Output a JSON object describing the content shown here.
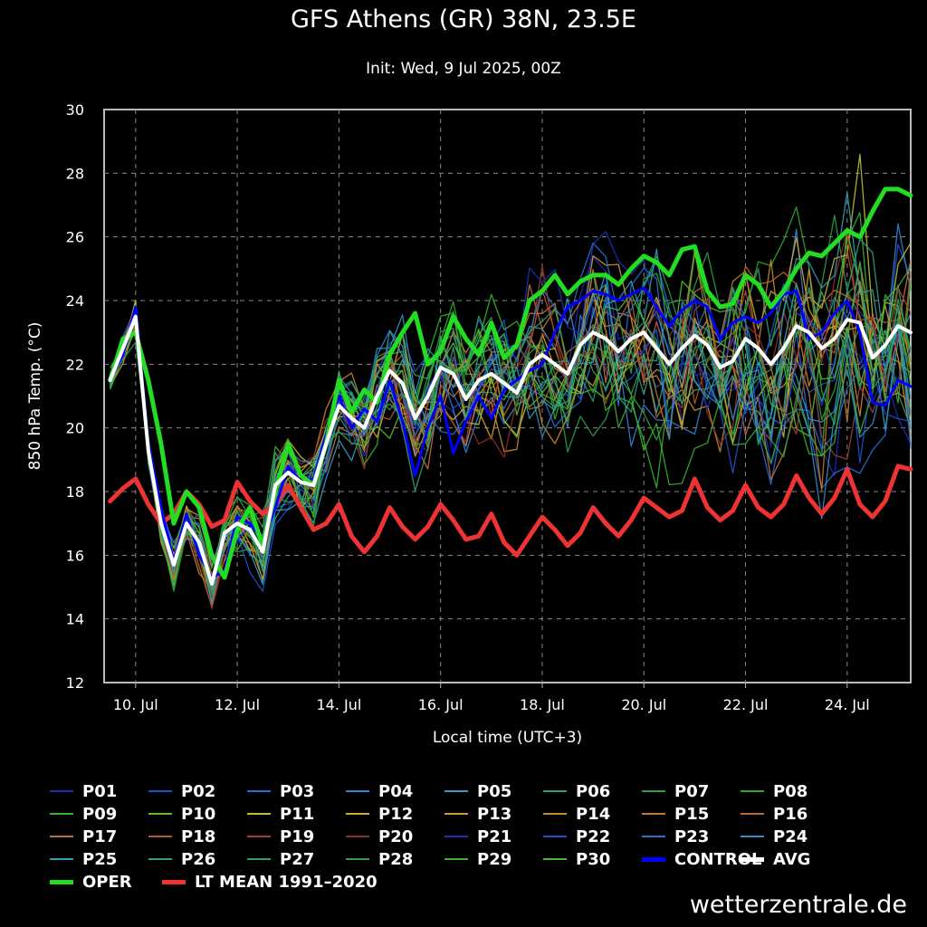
{
  "title": "GFS Athens (GR) 38N, 23.5E",
  "subtitle": "Init: Wed, 9 Jul 2025, 00Z",
  "credit": "wetterzentrale.de",
  "chart_data": {
    "type": "line",
    "title": "GFS Athens (GR) 38N, 23.5E",
    "subtitle": "Init: Wed, 9 Jul 2025, 00Z",
    "xlabel": "Local time (UTC+3)",
    "ylabel": "850 hPa Temp. (°C)",
    "x_axis": {
      "unit": "days after 9 Jul 2025 00Z (local)",
      "min": 0.38,
      "max": 16.25,
      "ticks": [
        1,
        3,
        5,
        7,
        9,
        11,
        13,
        15
      ],
      "tick_labels": [
        "10. Jul",
        "12. Jul",
        "14. Jul",
        "16. Jul",
        "18. Jul",
        "20. Jul",
        "22. Jul",
        "24. Jul"
      ]
    },
    "ylim": [
      12,
      30
    ],
    "yticks": [
      12,
      14,
      16,
      18,
      20,
      22,
      24,
      26,
      28,
      30
    ],
    "grid": true,
    "legend_placement": "bottom",
    "x_step_hours": 6,
    "x_start": 0.5,
    "series": [
      {
        "name": "OPER",
        "color": "#22dd22",
        "width": 5,
        "values": [
          21.5,
          22.8,
          23.0,
          21.5,
          19.5,
          17.0,
          18.0,
          17.5,
          16.0,
          15.3,
          16.8,
          17.5,
          16.3,
          18.0,
          19.5,
          18.5,
          18.2,
          19.5,
          21.5,
          20.5,
          21.2,
          20.8,
          22.3,
          23.0,
          23.6,
          22.0,
          22.4,
          23.5,
          22.8,
          22.3,
          23.3,
          22.2,
          22.6,
          24.0,
          24.3,
          24.8,
          24.2,
          24.6,
          24.8,
          24.8,
          24.5,
          25.0,
          25.4,
          25.2,
          24.8,
          25.6,
          25.7,
          24.3,
          23.8,
          23.9,
          24.8,
          24.5,
          23.8,
          24.3,
          25.0,
          25.5,
          25.4,
          25.8,
          26.2,
          26.0,
          26.8,
          27.5,
          27.5,
          27.3
        ]
      },
      {
        "name": "CONTROL",
        "color": "#0000ff",
        "width": 3,
        "values": [
          21.5,
          22.3,
          23.8,
          19.5,
          17.5,
          15.8,
          17.3,
          16.0,
          15.3,
          15.5,
          17.2,
          17.0,
          16.5,
          17.5,
          18.8,
          18.3,
          18.4,
          19.8,
          21.0,
          20.0,
          20.6,
          20.2,
          21.5,
          20.2,
          18.5,
          20.0,
          21.0,
          19.2,
          20.2,
          21.0,
          20.3,
          21.2,
          21.5,
          21.8,
          22.0,
          23.0,
          23.8,
          24.0,
          24.3,
          24.2,
          24.0,
          24.2,
          24.4,
          23.8,
          23.2,
          23.7,
          24.0,
          23.8,
          22.8,
          23.3,
          23.5,
          23.3,
          23.6,
          24.2,
          24.3,
          22.8,
          23.0,
          23.6,
          24.0,
          23.0,
          20.8,
          20.7,
          21.5,
          21.3
        ]
      },
      {
        "name": "AVG",
        "color": "#ffffff",
        "width": 4,
        "values": [
          21.5,
          22.5,
          23.5,
          19.3,
          17.0,
          15.7,
          17.0,
          16.4,
          15.1,
          16.7,
          17.0,
          16.8,
          16.1,
          18.2,
          18.6,
          18.3,
          18.2,
          19.5,
          20.7,
          20.3,
          20.0,
          21.0,
          21.8,
          21.4,
          20.3,
          21.0,
          21.9,
          21.7,
          20.9,
          21.5,
          21.7,
          21.4,
          21.1,
          22.0,
          22.3,
          22.0,
          21.7,
          22.6,
          23.0,
          22.8,
          22.4,
          22.8,
          23.0,
          22.5,
          22.0,
          22.5,
          22.9,
          22.6,
          21.9,
          22.1,
          22.8,
          22.5,
          22.0,
          22.5,
          23.2,
          23.0,
          22.5,
          22.8,
          23.4,
          23.3,
          22.2,
          22.6,
          23.2,
          23.0
        ]
      },
      {
        "name": "LT MEAN 1991–2020",
        "color": "#ee3333",
        "width": 5,
        "values": [
          17.7,
          18.1,
          18.4,
          17.6,
          17.0,
          17.3,
          18.0,
          17.6,
          16.9,
          17.1,
          18.3,
          17.7,
          17.3,
          17.6,
          18.2,
          17.5,
          16.8,
          17.0,
          17.6,
          16.6,
          16.1,
          16.6,
          17.5,
          16.9,
          16.5,
          16.9,
          17.6,
          17.1,
          16.5,
          16.6,
          17.3,
          16.4,
          16.0,
          16.6,
          17.2,
          16.8,
          16.3,
          16.7,
          17.5,
          17.0,
          16.6,
          17.1,
          17.8,
          17.5,
          17.2,
          17.4,
          18.4,
          17.5,
          17.1,
          17.4,
          18.2,
          17.5,
          17.2,
          17.6,
          18.5,
          17.8,
          17.3,
          17.8,
          18.7,
          17.6,
          17.2,
          17.7,
          18.8,
          18.7
        ]
      }
    ],
    "perturbation_members": [
      "P01",
      "P02",
      "P03",
      "P04",
      "P05",
      "P06",
      "P07",
      "P08",
      "P09",
      "P10",
      "P11",
      "P12",
      "P13",
      "P14",
      "P15",
      "P16",
      "P17",
      "P18",
      "P19",
      "P20",
      "P21",
      "P22",
      "P23",
      "P24",
      "P25",
      "P26",
      "P27",
      "P28",
      "P29",
      "P30"
    ]
  },
  "legend": [
    {
      "label": "P01",
      "color": "#1a2fb0"
    },
    {
      "label": "P02",
      "color": "#1f4fd0"
    },
    {
      "label": "P03",
      "color": "#2a6bd8"
    },
    {
      "label": "P04",
      "color": "#2f86d4"
    },
    {
      "label": "P05",
      "color": "#30a0c8"
    },
    {
      "label": "P06",
      "color": "#2fa070"
    },
    {
      "label": "P07",
      "color": "#2aa048"
    },
    {
      "label": "P08",
      "color": "#30a830"
    },
    {
      "label": "P09",
      "color": "#35b030"
    },
    {
      "label": "P10",
      "color": "#58c030"
    },
    {
      "label": "P11",
      "color": "#c0c030"
    },
    {
      "label": "P12",
      "color": "#d0a830"
    },
    {
      "label": "P13",
      "color": "#d09a30"
    },
    {
      "label": "P14",
      "color": "#c88a30"
    },
    {
      "label": "P15",
      "color": "#c07a30"
    },
    {
      "label": "P16",
      "color": "#b86a30"
    },
    {
      "label": "P17",
      "color": "#c07040"
    },
    {
      "label": "P18",
      "color": "#b05a30"
    },
    {
      "label": "P19",
      "color": "#a04030"
    },
    {
      "label": "P20",
      "color": "#902c2c"
    },
    {
      "label": "P21",
      "color": "#1a30c0"
    },
    {
      "label": "P22",
      "color": "#2050c8"
    },
    {
      "label": "P23",
      "color": "#2a70c8"
    },
    {
      "label": "P24",
      "color": "#2f90c0"
    },
    {
      "label": "P25",
      "color": "#30a0b0"
    },
    {
      "label": "P26",
      "color": "#30a080"
    },
    {
      "label": "P27",
      "color": "#30a060"
    },
    {
      "label": "P28",
      "color": "#30a040"
    },
    {
      "label": "P29",
      "color": "#38b030"
    },
    {
      "label": "P30",
      "color": "#48b830"
    },
    {
      "label": "CONTROL",
      "color": "#0000ff"
    },
    {
      "label": "AVG",
      "color": "#ffffff"
    },
    {
      "label": "OPER",
      "color": "#22dd22"
    },
    {
      "label": "LT MEAN 1991–2020",
      "color": "#ee3333"
    }
  ]
}
